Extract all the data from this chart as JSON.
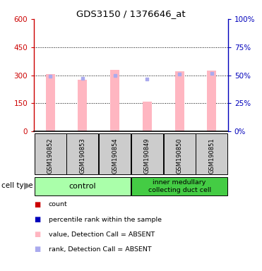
{
  "title": "GDS3150 / 1376646_at",
  "samples": [
    "GSM190852",
    "GSM190853",
    "GSM190854",
    "GSM190849",
    "GSM190850",
    "GSM190851"
  ],
  "bar_values": [
    305,
    275,
    330,
    160,
    320,
    325
  ],
  "rank_values": [
    295,
    283,
    300,
    280,
    307,
    308
  ],
  "bar_color_absent": "#FFB6C1",
  "rank_color_absent": "#AAAAEE",
  "left_axis_color": "#CC0000",
  "right_axis_color": "#0000BB",
  "ylim_left": [
    0,
    600
  ],
  "ylim_right": [
    0,
    100
  ],
  "yticks_left": [
    0,
    150,
    300,
    450,
    600
  ],
  "yticks_right": [
    0,
    25,
    50,
    75,
    100
  ],
  "sample_bg_color": "#CCCCCC",
  "control_color": "#AAFFAA",
  "inner_color": "#44CC44",
  "legend_colors": [
    "#CC0000",
    "#0000BB",
    "#FFB6C1",
    "#AAAAEE"
  ],
  "legend_labels": [
    "count",
    "percentile rank within the sample",
    "value, Detection Call = ABSENT",
    "rank, Detection Call = ABSENT"
  ]
}
